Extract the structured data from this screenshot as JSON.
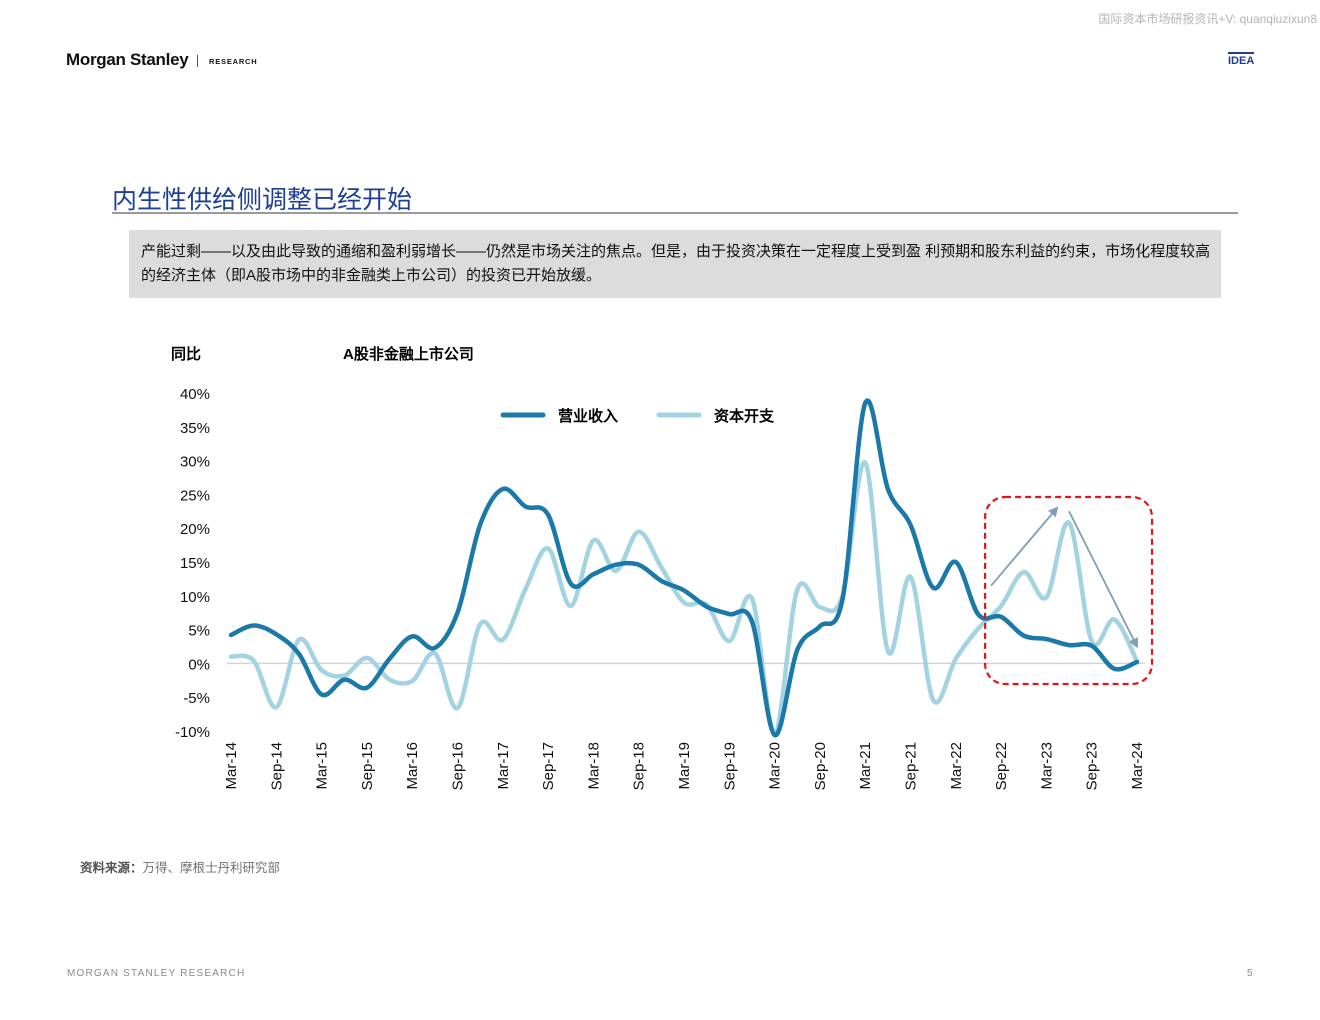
{
  "header": {
    "watermark": "国际资本市场研报资讯+V: quanqiuzixun8",
    "brand": "Morgan Stanley",
    "brand_sub": "RESEARCH",
    "badge": "IDEA"
  },
  "page_title": "内生性供给侧调整已经开始",
  "summary": "产能过剩——以及由此导致的通缩和盈利弱增长——仍然是市场关注的焦点。但是，由于投资决策在一定程度上受到盈 利预期和股东利益的约束，市场化程度较高的经济主体（即A股市场中的非金融类上市公司）的投资已开始放缓。",
  "source": {
    "label": "资料来源：",
    "text": "万得、摩根士丹利研究部"
  },
  "footer": {
    "left": "MORGAN STANLEY RESEARCH",
    "page": "5"
  },
  "chart_data": {
    "type": "line",
    "title": "A股非金融上市公司",
    "ylabel": "同比",
    "ylim": [
      -10,
      40
    ],
    "yticks": [
      "40%",
      "35%",
      "30%",
      "25%",
      "20%",
      "15%",
      "10%",
      "5%",
      "0%",
      "-5%",
      "-10%"
    ],
    "ytick_values": [
      40,
      35,
      30,
      25,
      20,
      15,
      10,
      5,
      0,
      -5,
      -10
    ],
    "x_labels": [
      "Mar-14",
      "Sep-14",
      "Mar-15",
      "Sep-15",
      "Mar-16",
      "Sep-16",
      "Mar-17",
      "Sep-17",
      "Mar-18",
      "Sep-18",
      "Mar-19",
      "Sep-19",
      "Mar-20",
      "Sep-20",
      "Mar-21",
      "Sep-21",
      "Mar-22",
      "Sep-22",
      "Mar-23",
      "Sep-23",
      "Mar-24"
    ],
    "x": [
      "Mar-14",
      "Jun-14",
      "Sep-14",
      "Dec-14",
      "Mar-15",
      "Jun-15",
      "Sep-15",
      "Dec-15",
      "Mar-16",
      "Jun-16",
      "Sep-16",
      "Dec-16",
      "Mar-17",
      "Jun-17",
      "Sep-17",
      "Dec-17",
      "Mar-18",
      "Jun-18",
      "Sep-18",
      "Dec-18",
      "Mar-19",
      "Jun-19",
      "Sep-19",
      "Dec-19",
      "Mar-20",
      "Jun-20",
      "Sep-20",
      "Dec-20",
      "Mar-21",
      "Jun-21",
      "Sep-21",
      "Dec-21",
      "Mar-22",
      "Jun-22",
      "Sep-22",
      "Dec-22",
      "Mar-23",
      "Jun-23",
      "Sep-23",
      "Dec-23",
      "Mar-24"
    ],
    "series": [
      {
        "name": "营业收入",
        "color": "#1a79a8",
        "values": [
          4.2,
          5.6,
          4.3,
          1.4,
          -4.6,
          -2.4,
          -3.6,
          0.7,
          4.0,
          2.3,
          7.5,
          20.5,
          25.8,
          23.2,
          22.0,
          11.8,
          13.2,
          14.6,
          14.6,
          12.2,
          10.8,
          8.4,
          7.3,
          6.2,
          -10.6,
          2.0,
          5.5,
          9.5,
          38.5,
          25.8,
          20.5,
          11.2,
          15.0,
          7.2,
          6.9,
          4.1,
          3.6,
          2.7,
          2.6,
          -0.8,
          0.2
        ]
      },
      {
        "name": "资本开支",
        "color": "#a3d3e0",
        "values": [
          1.0,
          0.4,
          -6.5,
          3.5,
          -1.0,
          -1.8,
          0.8,
          -2.4,
          -2.6,
          1.5,
          -6.6,
          5.8,
          3.5,
          11.0,
          17.0,
          8.5,
          18.2,
          13.7,
          19.5,
          14.2,
          9.0,
          8.7,
          3.3,
          9.6,
          -10.3,
          10.9,
          8.3,
          10.0,
          29.7,
          1.8,
          12.8,
          -5.4,
          0.7,
          5.2,
          8.5,
          13.5,
          9.8,
          20.8,
          3.3,
          6.5,
          0.3
        ]
      }
    ],
    "legend": "top-center",
    "grid": false,
    "highlight": {
      "from": "Sep-22",
      "to": "Mar-24"
    }
  }
}
